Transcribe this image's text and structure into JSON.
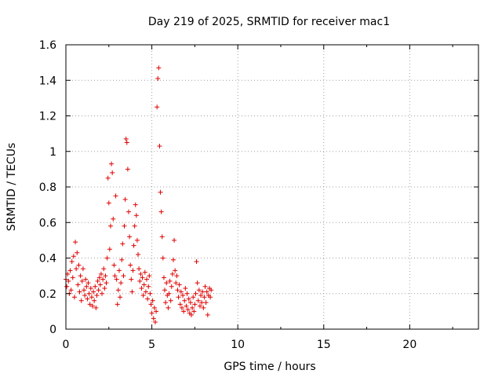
{
  "chart_data": {
    "type": "scatter",
    "title": "Day 219 of 2025, SRMTID for receiver mac1",
    "xlabel": "GPS time / hours",
    "ylabel": "SRMTID / TECUs",
    "xlim": [
      0,
      24
    ],
    "ylim": [
      0,
      1.6
    ],
    "x_ticks": [
      0,
      5,
      10,
      15,
      20
    ],
    "x_tick_labels": [
      "0",
      "5",
      "10",
      "15",
      "20"
    ],
    "y_ticks": [
      0,
      0.2,
      0.4,
      0.6,
      0.8,
      1.0,
      1.2,
      1.4,
      1.6
    ],
    "y_tick_labels": [
      "0",
      "0.2",
      "0.4",
      "0.6",
      "0.8",
      "1",
      "1.2",
      "1.4",
      "1.6"
    ],
    "grid": true,
    "marker": "+",
    "marker_color": "#e00000",
    "series": [
      {
        "name": "mac1",
        "points": [
          [
            0.0,
            0.28
          ],
          [
            0.05,
            0.24
          ],
          [
            0.1,
            0.31
          ],
          [
            0.15,
            0.27
          ],
          [
            0.2,
            0.2
          ],
          [
            0.25,
            0.33
          ],
          [
            0.3,
            0.22
          ],
          [
            0.35,
            0.38
          ],
          [
            0.4,
            0.29
          ],
          [
            0.45,
            0.41
          ],
          [
            0.5,
            0.18
          ],
          [
            0.55,
            0.49
          ],
          [
            0.6,
            0.34
          ],
          [
            0.65,
            0.43
          ],
          [
            0.7,
            0.25
          ],
          [
            0.75,
            0.36
          ],
          [
            0.8,
            0.21
          ],
          [
            0.85,
            0.3
          ],
          [
            0.9,
            0.16
          ],
          [
            0.95,
            0.27
          ],
          [
            1.0,
            0.34
          ],
          [
            1.05,
            0.22
          ],
          [
            1.1,
            0.19
          ],
          [
            1.15,
            0.28
          ],
          [
            1.2,
            0.24
          ],
          [
            1.25,
            0.17
          ],
          [
            1.3,
            0.26
          ],
          [
            1.35,
            0.2
          ],
          [
            1.4,
            0.14
          ],
          [
            1.45,
            0.23
          ],
          [
            1.5,
            0.18
          ],
          [
            1.55,
            0.13
          ],
          [
            1.6,
            0.21
          ],
          [
            1.65,
            0.16
          ],
          [
            1.7,
            0.24
          ],
          [
            1.75,
            0.12
          ],
          [
            1.8,
            0.19
          ],
          [
            1.85,
            0.27
          ],
          [
            1.9,
            0.22
          ],
          [
            1.95,
            0.29
          ],
          [
            2.0,
            0.25
          ],
          [
            2.05,
            0.31
          ],
          [
            2.1,
            0.2
          ],
          [
            2.15,
            0.28
          ],
          [
            2.2,
            0.34
          ],
          [
            2.25,
            0.23
          ],
          [
            2.3,
            0.3
          ],
          [
            2.35,
            0.26
          ],
          [
            2.4,
            0.4
          ],
          [
            2.45,
            0.85
          ],
          [
            2.5,
            0.71
          ],
          [
            2.55,
            0.45
          ],
          [
            2.6,
            0.58
          ],
          [
            2.65,
            0.93
          ],
          [
            2.7,
            0.88
          ],
          [
            2.75,
            0.62
          ],
          [
            2.8,
            0.36
          ],
          [
            2.85,
            0.3
          ],
          [
            2.9,
            0.75
          ],
          [
            2.95,
            0.28
          ],
          [
            3.0,
            0.14
          ],
          [
            3.05,
            0.22
          ],
          [
            3.1,
            0.33
          ],
          [
            3.15,
            0.18
          ],
          [
            3.2,
            0.26
          ],
          [
            3.25,
            0.39
          ],
          [
            3.3,
            0.48
          ],
          [
            3.35,
            0.3
          ],
          [
            3.4,
            0.58
          ],
          [
            3.45,
            0.73
          ],
          [
            3.5,
            1.07
          ],
          [
            3.55,
            1.05
          ],
          [
            3.6,
            0.9
          ],
          [
            3.65,
            0.66
          ],
          [
            3.7,
            0.52
          ],
          [
            3.75,
            0.36
          ],
          [
            3.8,
            0.28
          ],
          [
            3.85,
            0.21
          ],
          [
            3.9,
            0.33
          ],
          [
            3.95,
            0.47
          ],
          [
            4.0,
            0.58
          ],
          [
            4.05,
            0.7
          ],
          [
            4.1,
            0.64
          ],
          [
            4.15,
            0.5
          ],
          [
            4.2,
            0.42
          ],
          [
            4.25,
            0.34
          ],
          [
            4.3,
            0.27
          ],
          [
            4.35,
            0.31
          ],
          [
            4.4,
            0.23
          ],
          [
            4.45,
            0.29
          ],
          [
            4.5,
            0.19
          ],
          [
            4.55,
            0.25
          ],
          [
            4.6,
            0.32
          ],
          [
            4.65,
            0.21
          ],
          [
            4.7,
            0.28
          ],
          [
            4.75,
            0.17
          ],
          [
            4.8,
            0.24
          ],
          [
            4.85,
            0.3
          ],
          [
            4.9,
            0.2
          ],
          [
            4.95,
            0.14
          ],
          [
            5.0,
            0.09
          ],
          [
            5.05,
            0.16
          ],
          [
            5.1,
            0.06
          ],
          [
            5.15,
            0.12
          ],
          [
            5.2,
            0.04
          ],
          [
            5.25,
            0.1
          ],
          [
            5.3,
            1.25
          ],
          [
            5.35,
            1.41
          ],
          [
            5.4,
            1.47
          ],
          [
            5.45,
            1.03
          ],
          [
            5.5,
            0.77
          ],
          [
            5.55,
            0.66
          ],
          [
            5.6,
            0.52
          ],
          [
            5.65,
            0.4
          ],
          [
            5.7,
            0.29
          ],
          [
            5.75,
            0.22
          ],
          [
            5.8,
            0.15
          ],
          [
            5.85,
            0.26
          ],
          [
            5.9,
            0.19
          ],
          [
            5.95,
            0.12
          ],
          [
            6.0,
            0.2
          ],
          [
            6.05,
            0.27
          ],
          [
            6.1,
            0.16
          ],
          [
            6.15,
            0.24
          ],
          [
            6.2,
            0.31
          ],
          [
            6.25,
            0.39
          ],
          [
            6.3,
            0.5
          ],
          [
            6.35,
            0.33
          ],
          [
            6.4,
            0.26
          ],
          [
            6.45,
            0.3
          ],
          [
            6.5,
            0.22
          ],
          [
            6.55,
            0.18
          ],
          [
            6.6,
            0.25
          ],
          [
            6.65,
            0.14
          ],
          [
            6.7,
            0.21
          ],
          [
            6.75,
            0.12
          ],
          [
            6.8,
            0.19
          ],
          [
            6.85,
            0.1
          ],
          [
            6.9,
            0.16
          ],
          [
            6.95,
            0.23
          ],
          [
            7.0,
            0.13
          ],
          [
            7.05,
            0.2
          ],
          [
            7.1,
            0.11
          ],
          [
            7.15,
            0.17
          ],
          [
            7.2,
            0.09
          ],
          [
            7.25,
            0.15
          ],
          [
            7.3,
            0.08
          ],
          [
            7.35,
            0.12
          ],
          [
            7.4,
            0.18
          ],
          [
            7.45,
            0.1
          ],
          [
            7.5,
            0.14
          ],
          [
            7.55,
            0.2
          ],
          [
            7.6,
            0.38
          ],
          [
            7.65,
            0.26
          ],
          [
            7.7,
            0.16
          ],
          [
            7.75,
            0.22
          ],
          [
            7.8,
            0.13
          ],
          [
            7.85,
            0.19
          ],
          [
            7.9,
            0.15
          ],
          [
            7.95,
            0.21
          ],
          [
            8.0,
            0.12
          ],
          [
            8.05,
            0.18
          ],
          [
            8.1,
            0.24
          ],
          [
            8.15,
            0.15
          ],
          [
            8.2,
            0.21
          ],
          [
            8.25,
            0.08
          ],
          [
            8.3,
            0.19
          ],
          [
            8.35,
            0.23
          ],
          [
            8.4,
            0.18
          ],
          [
            8.45,
            0.22
          ]
        ]
      }
    ]
  }
}
